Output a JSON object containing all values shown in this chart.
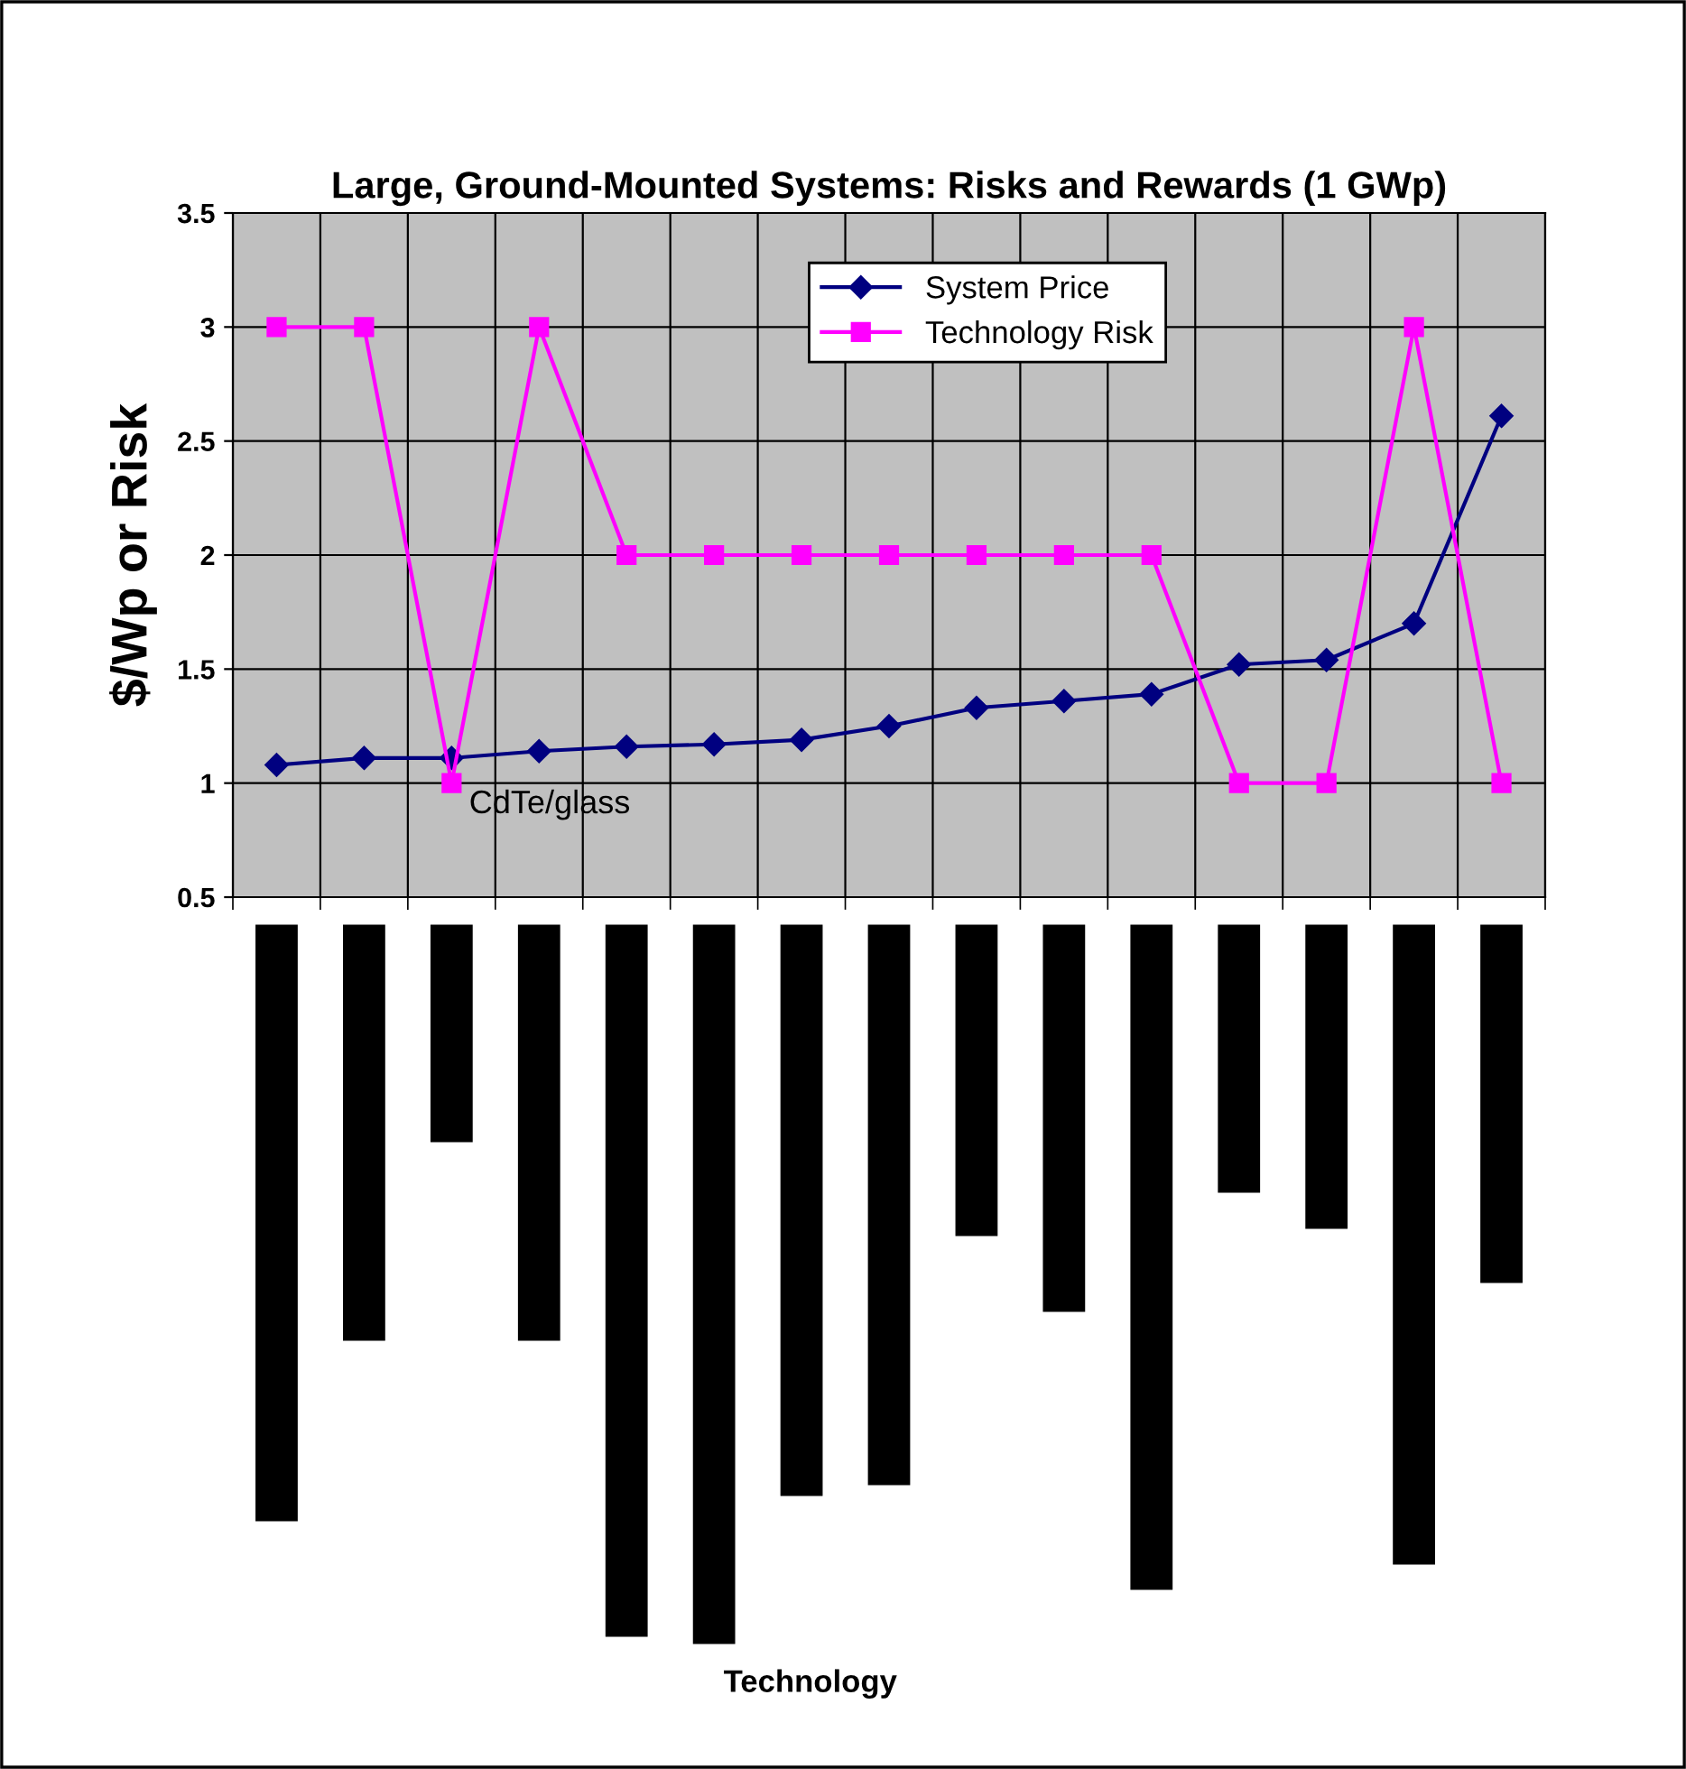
{
  "chart_data": {
    "type": "line",
    "title": "Large, Ground-Mounted Systems: Risks and Rewards (1 GWp)",
    "ylabel": "$/Wp or Risk",
    "categories": [
      null,
      null,
      null,
      null,
      null,
      null,
      null,
      null,
      null,
      null,
      null,
      null,
      null,
      null,
      null
    ],
    "series": [
      {
        "name": "System Price",
        "color": "#000080",
        "marker": "diamond",
        "values": [
          1.08,
          1.11,
          1.11,
          1.14,
          1.16,
          1.17,
          1.19,
          1.25,
          1.33,
          1.36,
          1.39,
          1.52,
          1.54,
          1.7,
          2.61
        ]
      },
      {
        "name": "Technology Risk",
        "color": "#ff00ff",
        "marker": "square",
        "values": [
          3,
          3,
          1,
          3,
          2,
          2,
          2,
          2,
          2,
          2,
          2,
          1,
          1,
          3,
          1
        ]
      }
    ],
    "ylim": [
      0.5,
      3.5
    ],
    "yticks": [
      {
        "value": 0.5,
        "label": "0.5"
      },
      1,
      {
        "value": 1.5,
        "label": "1.5"
      },
      2,
      {
        "value": 2.5,
        "label": "2.5"
      },
      3,
      {
        "value": 3.5,
        "label": "3.5"
      }
    ],
    "annotations": [
      "CdTe/glass",
      "Technology"
    ],
    "grid": true,
    "legend": "top"
  }
}
